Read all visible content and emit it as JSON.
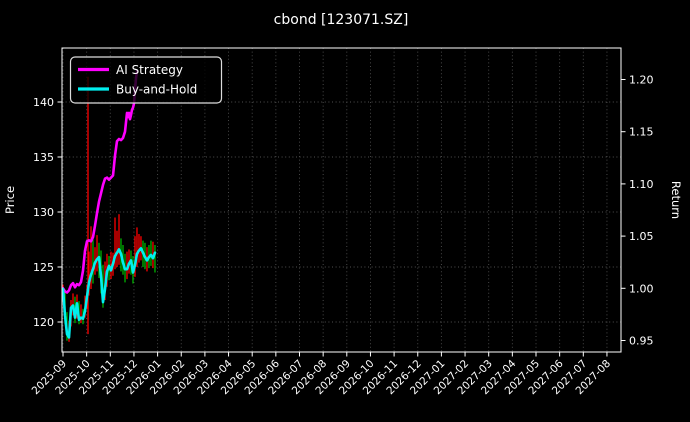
{
  "title": "cbond [123071.SZ]",
  "axes": {
    "left": {
      "label": "Price",
      "ticks": [
        120,
        125,
        130,
        135,
        140
      ]
    },
    "right": {
      "label": "Return",
      "ticks": [
        0.95,
        1.0,
        1.05,
        1.1,
        1.15,
        1.2
      ]
    },
    "x": {
      "tick_labels": [
        "2025-09",
        "2025-10",
        "2025-11",
        "2025-12",
        "2026-01",
        "2026-02",
        "2026-03",
        "2026-04",
        "2026-05",
        "2026-06",
        "2026-07",
        "2026-08",
        "2026-09",
        "2026-10",
        "2026-11",
        "2026-12",
        "2027-01",
        "2027-02",
        "2027-03",
        "2027-04",
        "2027-05",
        "2027-06",
        "2027-07",
        "2027-08"
      ]
    }
  },
  "legend": {
    "items": [
      {
        "label": "AI Strategy",
        "color": "#ff00ff"
      },
      {
        "label": "Buy-and-Hold",
        "color": "#00efef"
      }
    ]
  },
  "colors": {
    "background": "#000000",
    "text": "#ffffff",
    "grid": "#4f4f4f",
    "spine": "#ffffff",
    "candle_up": "#ff0000",
    "candle_down": "#00b300",
    "ai_strategy": "#ff00ff",
    "buy_and_hold": "#00efef"
  },
  "chart_data": {
    "type": "line",
    "title": "cbond [123071.SZ]",
    "xlabel": "",
    "x_unit": "months since 2025-09",
    "data_span": {
      "start": "2025-09",
      "end": "2026-01"
    },
    "grid": true,
    "legend_position": "upper left",
    "ylim_price": [
      117.3,
      144.9
    ],
    "ylim_return": [
      0.938,
      1.232
    ],
    "series": [
      {
        "name": "AI Strategy",
        "axis": "return",
        "points": [
          [
            0.0,
            1.0
          ],
          [
            0.085,
            0.997
          ],
          [
            0.169,
            0.996
          ],
          [
            0.254,
            0.998
          ],
          [
            0.338,
            1.003
          ],
          [
            0.423,
            1.005
          ],
          [
            0.507,
            1.001
          ],
          [
            0.592,
            1.004
          ],
          [
            0.677,
            1.003
          ],
          [
            0.761,
            1.006
          ],
          [
            0.846,
            1.017
          ],
          [
            0.93,
            1.036
          ],
          [
            1.015,
            1.045
          ],
          [
            1.099,
            1.046
          ],
          [
            1.184,
            1.045
          ],
          [
            1.268,
            1.049
          ],
          [
            1.353,
            1.06
          ],
          [
            1.438,
            1.072
          ],
          [
            1.522,
            1.083
          ],
          [
            1.607,
            1.091
          ],
          [
            1.691,
            1.099
          ],
          [
            1.776,
            1.105
          ],
          [
            1.86,
            1.106
          ],
          [
            1.945,
            1.104
          ],
          [
            2.03,
            1.106
          ],
          [
            2.114,
            1.108
          ],
          [
            2.199,
            1.127
          ],
          [
            2.283,
            1.141
          ],
          [
            2.368,
            1.143
          ],
          [
            2.452,
            1.142
          ],
          [
            2.537,
            1.144
          ],
          [
            2.622,
            1.15
          ],
          [
            2.706,
            1.168
          ],
          [
            2.748,
            1.164
          ],
          [
            2.791,
            1.168
          ],
          [
            2.833,
            1.162
          ],
          [
            2.875,
            1.166
          ],
          [
            2.917,
            1.171
          ],
          [
            2.959,
            1.173
          ],
          [
            3.002,
            1.177
          ],
          [
            3.044,
            1.19
          ],
          [
            3.086,
            1.201
          ],
          [
            3.128,
            1.208
          ]
        ]
      },
      {
        "name": "Buy-and-Hold",
        "axis": "price",
        "points": [
          [
            0.0,
            123.0
          ],
          [
            0.085,
            120.6
          ],
          [
            0.169,
            118.9
          ],
          [
            0.254,
            118.6
          ],
          [
            0.338,
            121.3
          ],
          [
            0.423,
            121.5
          ],
          [
            0.507,
            120.4
          ],
          [
            0.592,
            121.7
          ],
          [
            0.677,
            120.2
          ],
          [
            0.761,
            120.4
          ],
          [
            0.846,
            120.3
          ],
          [
            0.93,
            121.0
          ],
          [
            1.015,
            122.3
          ],
          [
            1.099,
            123.6
          ],
          [
            1.184,
            124.3
          ],
          [
            1.268,
            124.8
          ],
          [
            1.353,
            125.4
          ],
          [
            1.438,
            125.7
          ],
          [
            1.522,
            125.9
          ],
          [
            1.607,
            124.2
          ],
          [
            1.691,
            121.8
          ],
          [
            1.776,
            123.0
          ],
          [
            1.86,
            124.6
          ],
          [
            1.945,
            125.1
          ],
          [
            2.03,
            124.7
          ],
          [
            2.114,
            125.3
          ],
          [
            2.199,
            126.0
          ],
          [
            2.283,
            126.3
          ],
          [
            2.368,
            126.6
          ],
          [
            2.452,
            126.2
          ],
          [
            2.537,
            125.4
          ],
          [
            2.622,
            124.8
          ],
          [
            2.706,
            124.8
          ],
          [
            2.791,
            125.3
          ],
          [
            2.875,
            125.6
          ],
          [
            2.959,
            124.5
          ],
          [
            3.044,
            125.2
          ],
          [
            3.128,
            126.2
          ],
          [
            3.213,
            126.5
          ],
          [
            3.297,
            126.7
          ],
          [
            3.382,
            126.3
          ],
          [
            3.466,
            125.9
          ],
          [
            3.551,
            125.6
          ],
          [
            3.635,
            125.9
          ],
          [
            3.72,
            126.1
          ],
          [
            3.804,
            125.8
          ],
          [
            3.889,
            126.3
          ]
        ]
      }
    ],
    "candlesticks": {
      "note": "underlying bond price range bars [t, low, high, r=up/g=down]",
      "bars": [
        [
          0.0,
          121.8,
          123.4,
          "r"
        ],
        [
          0.085,
          119.8,
          122.8,
          "g"
        ],
        [
          0.169,
          118.3,
          120.9,
          "g"
        ],
        [
          0.254,
          118.2,
          120.1,
          "r"
        ],
        [
          0.338,
          119.6,
          122.0,
          "r"
        ],
        [
          0.423,
          120.6,
          122.6,
          "r"
        ],
        [
          0.507,
          119.9,
          122.3,
          "g"
        ],
        [
          0.592,
          120.3,
          122.5,
          "r"
        ],
        [
          0.677,
          119.8,
          121.9,
          "g"
        ],
        [
          0.761,
          119.9,
          121.6,
          "r"
        ],
        [
          0.846,
          119.8,
          121.2,
          "g"
        ],
        [
          0.93,
          120.4,
          122.4,
          "r"
        ],
        [
          1.015,
          121.2,
          123.4,
          "r"
        ],
        [
          1.057,
          118.9,
          142.3,
          "r"
        ],
        [
          1.099,
          122.4,
          126.4,
          "r"
        ],
        [
          1.184,
          123.0,
          128.7,
          "r"
        ],
        [
          1.268,
          123.5,
          127.5,
          "g"
        ],
        [
          1.353,
          124.3,
          126.8,
          "r"
        ],
        [
          1.438,
          124.6,
          127.9,
          "r"
        ],
        [
          1.522,
          124.0,
          127.2,
          "g"
        ],
        [
          1.607,
          122.6,
          126.5,
          "g"
        ],
        [
          1.691,
          121.3,
          125.2,
          "g"
        ],
        [
          1.776,
          122.0,
          125.5,
          "r"
        ],
        [
          1.86,
          123.2,
          126.2,
          "r"
        ],
        [
          1.945,
          123.8,
          126.0,
          "g"
        ],
        [
          2.03,
          123.9,
          126.4,
          "r"
        ],
        [
          2.114,
          124.2,
          126.3,
          "r"
        ],
        [
          2.199,
          124.8,
          129.5,
          "r"
        ],
        [
          2.283,
          125.0,
          128.3,
          "r"
        ],
        [
          2.368,
          125.2,
          129.8,
          "r"
        ],
        [
          2.452,
          124.6,
          127.6,
          "g"
        ],
        [
          2.537,
          124.3,
          127.0,
          "g"
        ],
        [
          2.622,
          123.6,
          126.2,
          "g"
        ],
        [
          2.706,
          123.9,
          126.4,
          "r"
        ],
        [
          2.791,
          124.4,
          126.6,
          "r"
        ],
        [
          2.875,
          124.3,
          126.5,
          "g"
        ],
        [
          2.959,
          123.5,
          126.0,
          "g"
        ],
        [
          3.044,
          124.1,
          127.8,
          "r"
        ],
        [
          3.128,
          125.0,
          128.6,
          "r"
        ],
        [
          3.213,
          125.4,
          128.0,
          "r"
        ],
        [
          3.297,
          125.6,
          127.8,
          "r"
        ],
        [
          3.382,
          125.0,
          127.4,
          "g"
        ],
        [
          3.466,
          124.8,
          127.2,
          "g"
        ],
        [
          3.551,
          124.6,
          126.8,
          "r"
        ],
        [
          3.635,
          124.9,
          127.0,
          "g"
        ],
        [
          3.72,
          125.1,
          127.4,
          "g"
        ],
        [
          3.804,
          124.9,
          127.3,
          "r"
        ],
        [
          3.889,
          124.5,
          127.0,
          "g"
        ]
      ]
    }
  }
}
